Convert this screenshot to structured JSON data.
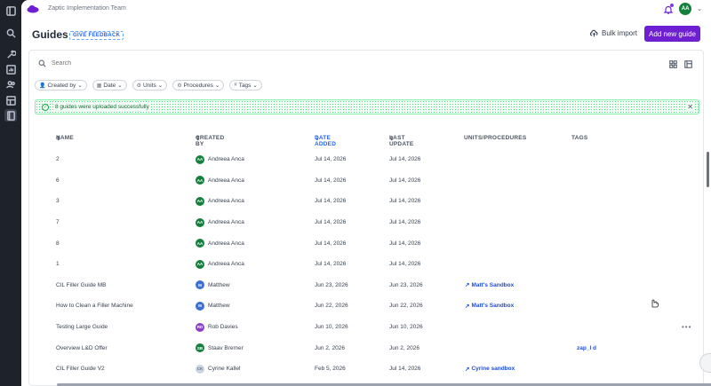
{
  "org": {
    "name": "Zaptic Implementation Team"
  },
  "user": {
    "initials": "AA",
    "color": "#15803d"
  },
  "header": {
    "title": "Guides",
    "feedback_label": "GIVE FEEDBACK",
    "bulk_label": "Bulk import",
    "add_label": "Add new guide"
  },
  "search": {
    "placeholder": "Search"
  },
  "filters": [
    {
      "label": "Created by",
      "icon": "person-icon"
    },
    {
      "label": "Date",
      "icon": "calendar-icon"
    },
    {
      "label": "Units",
      "icon": "unit-icon"
    },
    {
      "label": "Procedures",
      "icon": "procedure-icon"
    },
    {
      "label": "Tags",
      "icon": "hash-icon"
    }
  ],
  "banner": {
    "message": "8 guides were uploaded successfully"
  },
  "columns": {
    "name": "NAME",
    "created_by": "CREATED BY",
    "date_added": "DATE ADDED",
    "last_update": "LAST UPDATE",
    "units": "UNITS/PROCEDURES",
    "tags": "TAGS"
  },
  "rows": [
    {
      "name": "2",
      "creator": "Andreea Anca",
      "initials": "AA",
      "color": "#15803d",
      "added": "Jul 14, 2026",
      "updated": "Jul 14, 2026",
      "units": "",
      "tags": ""
    },
    {
      "name": "6",
      "creator": "Andreea Anca",
      "initials": "AA",
      "color": "#15803d",
      "added": "Jul 14, 2026",
      "updated": "Jul 14, 2026",
      "units": "",
      "tags": ""
    },
    {
      "name": "3",
      "creator": "Andreea Anca",
      "initials": "AA",
      "color": "#15803d",
      "added": "Jul 14, 2026",
      "updated": "Jul 14, 2026",
      "units": "",
      "tags": ""
    },
    {
      "name": "7",
      "creator": "Andreea Anca",
      "initials": "AA",
      "color": "#15803d",
      "added": "Jul 14, 2026",
      "updated": "Jul 14, 2026",
      "units": "",
      "tags": ""
    },
    {
      "name": "8",
      "creator": "Andreea Anca",
      "initials": "AA",
      "color": "#15803d",
      "added": "Jul 14, 2026",
      "updated": "Jul 14, 2026",
      "units": "",
      "tags": ""
    },
    {
      "name": "1",
      "creator": "Andreea Anca",
      "initials": "AA",
      "color": "#15803d",
      "added": "Jul 14, 2026",
      "updated": "Jul 14, 2026",
      "units": "",
      "tags": ""
    },
    {
      "name": "CIL Filler Guide MB",
      "creator": "Matthew",
      "initials": "M",
      "color": "#3b6fd6",
      "added": "Jun 23, 2026",
      "updated": "Jun 23, 2026",
      "units": "Matt's Sandbox",
      "tags": ""
    },
    {
      "name": "How to Clean a Filler Machine",
      "creator": "Matthew",
      "initials": "M",
      "color": "#3b6fd6",
      "added": "Jun 22, 2026",
      "updated": "Jun 22, 2026",
      "units": "Matt's Sandbox",
      "tags": ""
    },
    {
      "name": "Testing Large Guide",
      "creator": "Rob Davies",
      "initials": "RD",
      "color": "#8b3fc9",
      "added": "Jun 10, 2026",
      "updated": "Jun 10, 2026",
      "units": "",
      "tags": ""
    },
    {
      "name": "Overview L&D Offer",
      "creator": "Staav Bremer",
      "initials": "SB",
      "color": "#15803d",
      "added": "Jun 2, 2026",
      "updated": "Jun 2, 2026",
      "units": "",
      "tags": "zap_l d"
    },
    {
      "name": "CIL Filler Guide V2",
      "creator": "Cyrine Kallel",
      "initials": "CK",
      "color": "#cbd5e1",
      "added": "Feb 5, 2026",
      "updated": "Jul 14, 2026",
      "units": "Cyrine sandbox",
      "tags": ""
    }
  ],
  "colors": {
    "accent": "#6d1fd1",
    "link": "#1d4ed8",
    "success": "#16a34a"
  }
}
